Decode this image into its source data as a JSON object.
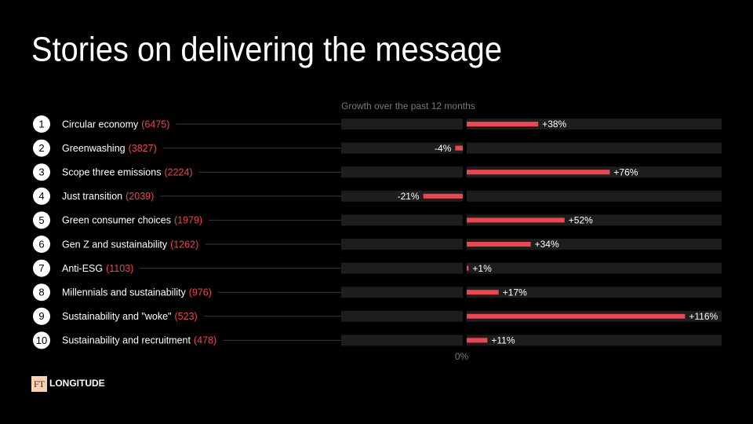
{
  "chart_data": {
    "type": "diverging-bar",
    "title": "Stories on delivering the message",
    "subtitle": "Growth over the past 12 months",
    "ranks": [
      1,
      2,
      3,
      4,
      5,
      6,
      7,
      8,
      9,
      10
    ],
    "categories": [
      "Circular economy",
      "Greenwashing",
      "Scope three emissions",
      "Just transition",
      "Green consumer choices",
      "Gen Z and sustainability",
      "Anti-ESG",
      "Millennials and sustainability",
      "Sustainability and \"woke\"",
      "Sustainability and recruitment"
    ],
    "count_labels": [
      "(6475)",
      "(3827)",
      "(2224)",
      "(2039)",
      "(1979)",
      "(1262)",
      "(1103)",
      "(976)",
      "(523)",
      "(478)"
    ],
    "values": [
      38,
      -4,
      76,
      -21,
      52,
      34,
      1,
      17,
      116,
      11
    ],
    "value_labels": [
      "+38%",
      "-4%",
      "+76%",
      "-21%",
      "+52%",
      "+34%",
      "+1%",
      "+17%",
      "+116%",
      "+11%"
    ],
    "color": "#ef4550",
    "xlim": [
      -65,
      135
    ],
    "xticks": [
      {
        "value": 0,
        "label": "0%"
      }
    ],
    "brand": {
      "mark": "FT",
      "name": "LONGITUDE"
    }
  }
}
